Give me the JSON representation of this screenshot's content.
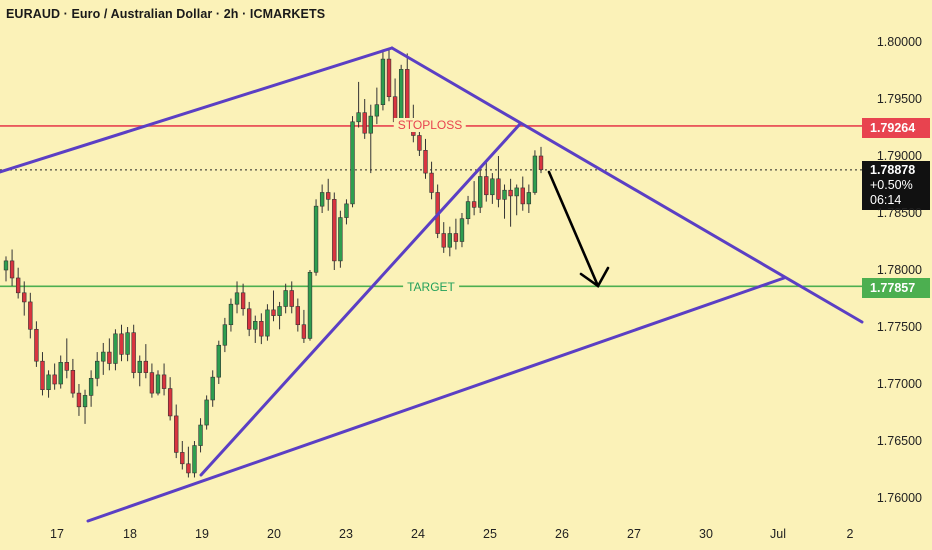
{
  "header": {
    "title": "EURAUD · Euro / Australian Dollar · 2h · ICMARKETS"
  },
  "colors": {
    "background": "#fbf2b8",
    "up_candle": "#2e9e4f",
    "down_candle": "#d9343f",
    "pattern_lines": "#5b3fc4",
    "stoploss": "#e8434f",
    "target": "#4caf50",
    "arrow": "#000000"
  },
  "levels": {
    "stoploss": {
      "label": "STOPLOSS",
      "price_label": "1.79264"
    },
    "target": {
      "label": "TARGET",
      "price_label": "1.77857"
    },
    "current": {
      "price_label": "1.78878",
      "change_label": "+0.50%",
      "countdown": "06:14"
    }
  },
  "chart_data": {
    "type": "candlestick",
    "symbol": "EURAUD",
    "timeframe": "2h",
    "y_axis": {
      "ticks": [
        "1.80000",
        "1.79500",
        "1.79000",
        "1.78500",
        "1.78000",
        "1.77500",
        "1.77000",
        "1.76500",
        "1.76000"
      ],
      "ylim": [
        1.7573,
        1.8019
      ]
    },
    "x_axis": {
      "ticks": [
        "17",
        "18",
        "19",
        "20",
        "23",
        "24",
        "25",
        "26",
        "27",
        "30",
        "Jul",
        "2"
      ]
    },
    "stoploss_price": 1.79264,
    "target_price": 1.77857,
    "current_price": 1.78878,
    "candles": [
      [
        1.78,
        1.7812,
        1.779,
        1.7808
      ],
      [
        1.7808,
        1.7818,
        1.7786,
        1.7793
      ],
      [
        1.7793,
        1.7802,
        1.7775,
        1.778
      ],
      [
        1.778,
        1.779,
        1.776,
        1.7772
      ],
      [
        1.7772,
        1.778,
        1.774,
        1.7748
      ],
      [
        1.7748,
        1.7755,
        1.7715,
        1.772
      ],
      [
        1.772,
        1.7728,
        1.769,
        1.7695
      ],
      [
        1.7695,
        1.7712,
        1.7688,
        1.7708
      ],
      [
        1.7708,
        1.7718,
        1.7695,
        1.77
      ],
      [
        1.77,
        1.7725,
        1.7696,
        1.7719
      ],
      [
        1.7719,
        1.774,
        1.7705,
        1.7712
      ],
      [
        1.7712,
        1.7722,
        1.7688,
        1.7692
      ],
      [
        1.7692,
        1.77,
        1.7672,
        1.768
      ],
      [
        1.768,
        1.7695,
        1.7665,
        1.769
      ],
      [
        1.769,
        1.7712,
        1.768,
        1.7705
      ],
      [
        1.7705,
        1.7728,
        1.7698,
        1.772
      ],
      [
        1.772,
        1.7736,
        1.7708,
        1.7728
      ],
      [
        1.7728,
        1.774,
        1.7712,
        1.7718
      ],
      [
        1.7718,
        1.7748,
        1.7712,
        1.7744
      ],
      [
        1.7744,
        1.7752,
        1.772,
        1.7726
      ],
      [
        1.7726,
        1.775,
        1.772,
        1.7745
      ],
      [
        1.7745,
        1.7752,
        1.7705,
        1.771
      ],
      [
        1.771,
        1.7725,
        1.7698,
        1.772
      ],
      [
        1.772,
        1.7735,
        1.7705,
        1.771
      ],
      [
        1.771,
        1.7718,
        1.7688,
        1.7692
      ],
      [
        1.7692,
        1.7712,
        1.769,
        1.7708
      ],
      [
        1.7708,
        1.7718,
        1.769,
        1.7696
      ],
      [
        1.7696,
        1.7706,
        1.7668,
        1.7672
      ],
      [
        1.7672,
        1.7682,
        1.7635,
        1.764
      ],
      [
        1.764,
        1.765,
        1.7625,
        1.763
      ],
      [
        1.763,
        1.7645,
        1.7618,
        1.7622
      ],
      [
        1.7622,
        1.765,
        1.7618,
        1.7646
      ],
      [
        1.7646,
        1.767,
        1.764,
        1.7664
      ],
      [
        1.7664,
        1.769,
        1.766,
        1.7686
      ],
      [
        1.7686,
        1.7712,
        1.768,
        1.7706
      ],
      [
        1.7706,
        1.7738,
        1.77,
        1.7734
      ],
      [
        1.7734,
        1.7758,
        1.7728,
        1.7752
      ],
      [
        1.7752,
        1.7775,
        1.7746,
        1.777
      ],
      [
        1.777,
        1.779,
        1.7762,
        1.778
      ],
      [
        1.778,
        1.7788,
        1.776,
        1.7766
      ],
      [
        1.7766,
        1.7772,
        1.7742,
        1.7748
      ],
      [
        1.7748,
        1.776,
        1.7736,
        1.7755
      ],
      [
        1.7755,
        1.7762,
        1.7735,
        1.7742
      ],
      [
        1.7742,
        1.777,
        1.7738,
        1.7765
      ],
      [
        1.7765,
        1.7782,
        1.7755,
        1.776
      ],
      [
        1.776,
        1.7772,
        1.7748,
        1.7768
      ],
      [
        1.7768,
        1.7788,
        1.7762,
        1.7782
      ],
      [
        1.7782,
        1.779,
        1.7762,
        1.7768
      ],
      [
        1.7768,
        1.7775,
        1.7746,
        1.7752
      ],
      [
        1.7752,
        1.7765,
        1.7736,
        1.774
      ],
      [
        1.774,
        1.78,
        1.7738,
        1.7798
      ],
      [
        1.7798,
        1.7862,
        1.7795,
        1.7856
      ],
      [
        1.7856,
        1.7875,
        1.785,
        1.7868
      ],
      [
        1.7868,
        1.788,
        1.7852,
        1.7862
      ],
      [
        1.7862,
        1.7868,
        1.78,
        1.7808
      ],
      [
        1.7808,
        1.7852,
        1.7802,
        1.7846
      ],
      [
        1.7846,
        1.7862,
        1.784,
        1.7858
      ],
      [
        1.7858,
        1.7935,
        1.7855,
        1.793
      ],
      [
        1.793,
        1.7965,
        1.7925,
        1.7938
      ],
      [
        1.7938,
        1.795,
        1.7915,
        1.792
      ],
      [
        1.792,
        1.7945,
        1.7885,
        1.7935
      ],
      [
        1.7935,
        1.796,
        1.7928,
        1.7945
      ],
      [
        1.7945,
        1.7992,
        1.794,
        1.7985
      ],
      [
        1.7985,
        1.7995,
        1.7948,
        1.7952
      ],
      [
        1.7952,
        1.7968,
        1.7925,
        1.793
      ],
      [
        1.793,
        1.798,
        1.7926,
        1.7976
      ],
      [
        1.7976,
        1.799,
        1.7925,
        1.793
      ],
      [
        1.793,
        1.7945,
        1.7912,
        1.7918
      ],
      [
        1.7918,
        1.7928,
        1.79,
        1.7905
      ],
      [
        1.7905,
        1.7915,
        1.788,
        1.7885
      ],
      [
        1.7885,
        1.7895,
        1.7862,
        1.7868
      ],
      [
        1.7868,
        1.7875,
        1.7828,
        1.7832
      ],
      [
        1.7832,
        1.7842,
        1.7815,
        1.782
      ],
      [
        1.782,
        1.7838,
        1.7812,
        1.7832
      ],
      [
        1.7832,
        1.7845,
        1.7818,
        1.7825
      ],
      [
        1.7825,
        1.785,
        1.782,
        1.7845
      ],
      [
        1.7845,
        1.7865,
        1.784,
        1.786
      ],
      [
        1.786,
        1.7878,
        1.7848,
        1.7855
      ],
      [
        1.7855,
        1.7888,
        1.785,
        1.7882
      ],
      [
        1.7882,
        1.7895,
        1.786,
        1.7866
      ],
      [
        1.7866,
        1.7885,
        1.7858,
        1.788
      ],
      [
        1.788,
        1.79,
        1.7855,
        1.7862
      ],
      [
        1.7862,
        1.7875,
        1.7845,
        1.787
      ],
      [
        1.787,
        1.788,
        1.7838,
        1.7865
      ],
      [
        1.7865,
        1.7875,
        1.7848,
        1.7872
      ],
      [
        1.7872,
        1.7882,
        1.7852,
        1.7858
      ],
      [
        1.7858,
        1.7875,
        1.785,
        1.7868
      ],
      [
        1.7868,
        1.7905,
        1.7866,
        1.79
      ],
      [
        1.79,
        1.7908,
        1.7885,
        1.7888
      ]
    ]
  }
}
